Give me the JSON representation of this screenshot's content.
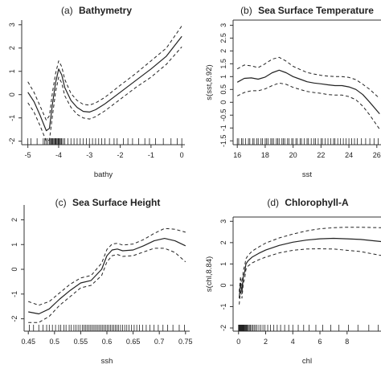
{
  "chart_data": [
    {
      "type": "line",
      "panel_letter": "(a)",
      "title": "Bathymetry",
      "xlabel": "bathy",
      "ylabel": "",
      "xlim": [
        -5.2,
        0.1
      ],
      "ylim": [
        -2.15,
        3.2
      ],
      "xticks": [
        -5,
        -4,
        -3,
        -2,
        -1,
        0
      ],
      "yticks": [
        -2,
        -1,
        0,
        1,
        2,
        3
      ],
      "grid": false,
      "series": [
        {
          "style": "solid",
          "x": [
            -5,
            -4.8,
            -4.6,
            -4.4,
            -4.3,
            -4.2,
            -4.1,
            -4.0,
            -3.9,
            -3.8,
            -3.6,
            -3.4,
            -3.2,
            -3.0,
            -2.8,
            -2.5,
            -2.0,
            -1.5,
            -1.0,
            -0.5,
            0.0
          ],
          "y": [
            0.1,
            -0.3,
            -0.9,
            -1.55,
            -1.45,
            -0.4,
            0.5,
            1.1,
            0.85,
            0.3,
            -0.25,
            -0.55,
            -0.72,
            -0.75,
            -0.65,
            -0.4,
            0.1,
            0.6,
            1.1,
            1.65,
            2.5
          ]
        },
        {
          "style": "dashed",
          "x": [
            -5,
            -4.8,
            -4.6,
            -4.4,
            -4.3,
            -4.2,
            -4.1,
            -4.0,
            -3.9,
            -3.8,
            -3.6,
            -3.4,
            -3.2,
            -3.0,
            -2.8,
            -2.5,
            -2.0,
            -1.5,
            -1.0,
            -0.5,
            0.0
          ],
          "y": [
            0.55,
            0.1,
            -0.5,
            -1.1,
            -0.9,
            0.1,
            0.9,
            1.45,
            1.2,
            0.65,
            0.05,
            -0.25,
            -0.42,
            -0.45,
            -0.36,
            -0.12,
            0.4,
            0.9,
            1.45,
            2.0,
            2.95
          ]
        },
        {
          "style": "dashed",
          "x": [
            -5,
            -4.8,
            -4.6,
            -4.4,
            -4.3,
            -4.2,
            -4.1,
            -4.0,
            -3.9,
            -3.8,
            -3.6,
            -3.4,
            -3.2,
            -3.0,
            -2.8,
            -2.5,
            -2.0,
            -1.5,
            -1.0,
            -0.5,
            0.0
          ],
          "y": [
            -0.35,
            -0.75,
            -1.35,
            -2.0,
            -1.95,
            -0.9,
            0.1,
            0.75,
            0.5,
            -0.05,
            -0.55,
            -0.85,
            -1.0,
            -1.05,
            -0.95,
            -0.7,
            -0.2,
            0.3,
            0.75,
            1.3,
            2.05
          ]
        }
      ],
      "rug": [
        -5.0,
        -4.9,
        -4.7,
        -4.5,
        -4.45,
        -4.4,
        -4.35,
        -4.3,
        -4.28,
        -4.25,
        -4.22,
        -4.2,
        -4.18,
        -4.15,
        -4.12,
        -4.1,
        -4.08,
        -4.05,
        -4.02,
        -4.0,
        -3.98,
        -3.95,
        -3.92,
        -3.9,
        -3.85,
        -3.8,
        -3.7,
        -3.6,
        -3.5,
        -3.4,
        -3.3,
        -3.2,
        -3.1,
        -3.0,
        -2.9,
        -2.8,
        -2.7,
        -2.6,
        -2.5,
        -2.35,
        -2.2,
        -2.1,
        -1.9,
        -1.75,
        -1.6,
        -1.4,
        -1.2,
        -1.05,
        -0.85,
        -0.6,
        -0.35,
        -0.15,
        0.0
      ]
    },
    {
      "type": "line",
      "panel_letter": "(b)",
      "title": "Sea Surface Temperature",
      "xlabel": "sst",
      "ylabel": "s(sst,8.92)",
      "xlim": [
        15.7,
        26.3
      ],
      "ylim": [
        -1.65,
        3.2
      ],
      "xticks": [
        16,
        18,
        20,
        22,
        24,
        26
      ],
      "yticks": [
        -1.5,
        -1,
        -0.5,
        0,
        0.5,
        1,
        1.5,
        2,
        2.5,
        3
      ],
      "grid": false,
      "series": [
        {
          "style": "solid",
          "x": [
            16,
            16.5,
            17,
            17.5,
            18,
            18.5,
            19,
            19.5,
            20,
            20.5,
            21,
            21.5,
            22,
            22.5,
            23,
            23.5,
            24,
            24.5,
            25,
            25.5,
            26.2
          ],
          "y": [
            0.78,
            0.93,
            0.95,
            0.9,
            0.98,
            1.15,
            1.25,
            1.15,
            1.0,
            0.9,
            0.8,
            0.75,
            0.72,
            0.68,
            0.65,
            0.65,
            0.6,
            0.5,
            0.3,
            0.0,
            -0.45
          ]
        },
        {
          "style": "dashed",
          "x": [
            16,
            16.5,
            17,
            17.5,
            18,
            18.5,
            19,
            19.5,
            20,
            20.5,
            21,
            21.5,
            22,
            22.5,
            23,
            23.5,
            24,
            24.5,
            25,
            25.5,
            26.2
          ],
          "y": [
            1.3,
            1.45,
            1.42,
            1.35,
            1.5,
            1.68,
            1.75,
            1.6,
            1.4,
            1.28,
            1.16,
            1.1,
            1.05,
            1.02,
            1.0,
            1.0,
            0.97,
            0.88,
            0.7,
            0.5,
            0.15
          ]
        },
        {
          "style": "dashed",
          "x": [
            16,
            16.5,
            17,
            17.5,
            18,
            18.5,
            19,
            19.5,
            20,
            20.5,
            21,
            21.5,
            22,
            22.5,
            23,
            23.5,
            24,
            24.5,
            25,
            25.5,
            26.2
          ],
          "y": [
            0.25,
            0.38,
            0.45,
            0.45,
            0.52,
            0.65,
            0.75,
            0.7,
            0.58,
            0.5,
            0.42,
            0.38,
            0.35,
            0.3,
            0.28,
            0.28,
            0.22,
            0.1,
            -0.15,
            -0.5,
            -1.05
          ]
        }
      ],
      "rug": [
        16.0,
        16.1,
        16.3,
        16.4,
        16.6,
        16.8,
        16.9,
        17.1,
        17.2,
        17.4,
        17.5,
        17.7,
        17.8,
        18.0,
        18.1,
        18.2,
        18.4,
        18.5,
        18.6,
        18.8,
        18.9,
        19.0,
        19.2,
        19.3,
        19.4,
        19.6,
        19.7,
        19.9,
        20.0,
        20.2,
        20.3,
        20.5,
        20.6,
        20.8,
        21.0,
        21.1,
        21.3,
        21.5,
        21.6,
        21.8,
        22.0,
        22.1,
        22.3,
        22.5,
        22.7,
        22.9,
        23.0,
        23.2,
        23.4,
        23.6,
        23.8,
        24.0,
        24.2,
        24.4,
        24.6,
        24.9,
        25.2,
        25.5,
        25.8,
        26.1
      ]
    },
    {
      "type": "line",
      "panel_letter": "(c)",
      "title": "Sea Surface Height",
      "xlabel": "ssh",
      "ylabel": "",
      "xlim": [
        0.442,
        0.758
      ],
      "ylim": [
        -2.5,
        2.6
      ],
      "xticks": [
        0.45,
        0.5,
        0.55,
        0.6,
        0.65,
        0.7,
        0.75
      ],
      "yticks": [
        -2,
        -1,
        0,
        1,
        2
      ],
      "grid": false,
      "series": [
        {
          "style": "solid",
          "x": [
            0.45,
            0.47,
            0.49,
            0.51,
            0.53,
            0.55,
            0.57,
            0.59,
            0.6,
            0.61,
            0.62,
            0.63,
            0.65,
            0.67,
            0.69,
            0.71,
            0.73,
            0.75
          ],
          "y": [
            -1.72,
            -1.8,
            -1.6,
            -1.2,
            -0.85,
            -0.55,
            -0.45,
            0.0,
            0.55,
            0.78,
            0.82,
            0.75,
            0.78,
            0.95,
            1.15,
            1.25,
            1.15,
            0.95
          ]
        },
        {
          "style": "dashed",
          "x": [
            0.45,
            0.47,
            0.49,
            0.51,
            0.53,
            0.55,
            0.57,
            0.59,
            0.6,
            0.61,
            0.62,
            0.63,
            0.65,
            0.67,
            0.69,
            0.71,
            0.73,
            0.75
          ],
          "y": [
            -1.3,
            -1.45,
            -1.3,
            -0.95,
            -0.6,
            -0.35,
            -0.25,
            0.25,
            0.8,
            1.02,
            1.05,
            0.98,
            1.02,
            1.2,
            1.45,
            1.65,
            1.62,
            1.5
          ]
        },
        {
          "style": "dashed",
          "x": [
            0.45,
            0.47,
            0.49,
            0.51,
            0.53,
            0.55,
            0.57,
            0.59,
            0.6,
            0.61,
            0.62,
            0.63,
            0.65,
            0.67,
            0.69,
            0.71,
            0.73,
            0.75
          ],
          "y": [
            -2.15,
            -2.15,
            -1.9,
            -1.45,
            -1.1,
            -0.75,
            -0.65,
            -0.25,
            0.3,
            0.55,
            0.6,
            0.52,
            0.55,
            0.7,
            0.85,
            0.85,
            0.68,
            0.3
          ]
        }
      ],
      "rug": [
        0.452,
        0.46,
        0.47,
        0.478,
        0.485,
        0.49,
        0.496,
        0.502,
        0.508,
        0.512,
        0.518,
        0.522,
        0.528,
        0.532,
        0.537,
        0.541,
        0.545,
        0.549,
        0.553,
        0.556,
        0.559,
        0.562,
        0.565,
        0.568,
        0.571,
        0.574,
        0.577,
        0.58,
        0.583,
        0.586,
        0.589,
        0.592,
        0.595,
        0.598,
        0.601,
        0.604,
        0.607,
        0.61,
        0.613,
        0.616,
        0.619,
        0.622,
        0.626,
        0.63,
        0.634,
        0.638,
        0.642,
        0.647,
        0.652,
        0.657,
        0.662,
        0.668,
        0.675,
        0.682,
        0.69,
        0.698,
        0.707,
        0.716,
        0.726,
        0.738,
        0.748
      ]
    },
    {
      "type": "line",
      "panel_letter": "(d)",
      "title": "Chlorophyll-A",
      "xlabel": "chl",
      "ylabel": "s(chl,8.84)",
      "xlim": [
        -0.4,
        10.5
      ],
      "ylim": [
        -2.15,
        3.2
      ],
      "xticks": [
        0,
        2,
        4,
        6,
        8
      ],
      "yticks": [
        -2,
        -1,
        0,
        1,
        2,
        3
      ],
      "grid": false,
      "series": [
        {
          "style": "solid",
          "x": [
            0.05,
            0.15,
            0.25,
            0.35,
            0.45,
            0.55,
            0.7,
            1.0,
            1.5,
            2.0,
            3.0,
            4.0,
            5.0,
            6.0,
            7.0,
            8.0,
            9.0,
            10.5
          ],
          "y": [
            -0.6,
            0.1,
            -0.3,
            0.4,
            0.6,
            1.0,
            1.15,
            1.32,
            1.5,
            1.65,
            1.87,
            2.02,
            2.12,
            2.18,
            2.2,
            2.18,
            2.15,
            2.05
          ]
        },
        {
          "style": "dashed",
          "x": [
            0.05,
            0.15,
            0.25,
            0.35,
            0.45,
            0.55,
            0.7,
            1.0,
            1.5,
            2.0,
            3.0,
            4.0,
            5.0,
            6.0,
            7.0,
            8.0,
            9.0,
            10.5
          ],
          "y": [
            -0.3,
            0.4,
            0.0,
            0.7,
            0.9,
            1.25,
            1.4,
            1.6,
            1.8,
            1.98,
            2.22,
            2.4,
            2.55,
            2.65,
            2.7,
            2.72,
            2.72,
            2.7
          ]
        },
        {
          "style": "dashed",
          "x": [
            0.05,
            0.15,
            0.25,
            0.35,
            0.45,
            0.55,
            0.7,
            1.0,
            1.5,
            2.0,
            3.0,
            4.0,
            5.0,
            6.0,
            7.0,
            8.0,
            9.0,
            10.5
          ],
          "y": [
            -0.9,
            -0.2,
            -0.6,
            0.1,
            0.3,
            0.75,
            0.9,
            1.05,
            1.2,
            1.32,
            1.52,
            1.64,
            1.7,
            1.71,
            1.7,
            1.64,
            1.58,
            1.4
          ]
        }
      ],
      "rug": [
        0.0,
        0.03,
        0.06,
        0.09,
        0.12,
        0.15,
        0.18,
        0.21,
        0.24,
        0.27,
        0.3,
        0.33,
        0.36,
        0.39,
        0.42,
        0.46,
        0.5,
        0.55,
        0.6,
        0.66,
        0.72,
        0.8,
        0.88,
        0.96,
        1.05,
        1.15,
        1.25,
        1.36,
        1.5,
        1.65,
        1.8,
        1.95,
        2.15,
        2.35,
        2.6,
        2.85,
        3.1,
        3.4,
        3.7,
        4.0,
        4.4,
        4.8,
        5.2,
        5.7,
        6.2,
        6.8,
        7.4,
        8.1,
        8.8,
        9.6,
        10.3
      ]
    }
  ]
}
